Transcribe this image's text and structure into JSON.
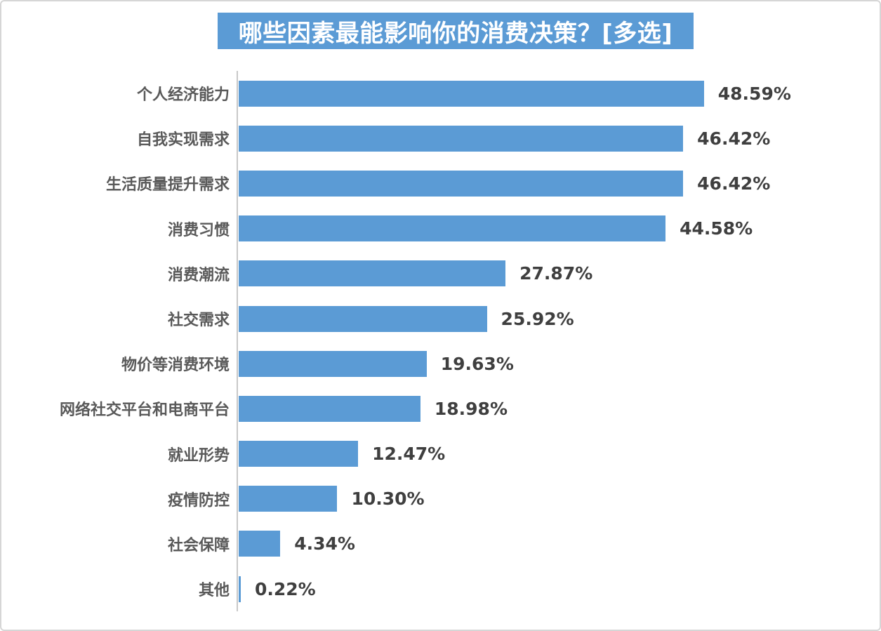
{
  "page": {
    "background": "#FFFFFF",
    "border_color": "#D6D6D6"
  },
  "chart_data": {
    "type": "bar",
    "orientation": "horizontal",
    "title": "哪些因素最能影响你的消费决策？[多选]",
    "categories": [
      "个人经济能力",
      "自我实现需求",
      "生活质量提升需求",
      "消费习惯",
      "消费潮流",
      "社交需求",
      "物价等消费环境",
      "网络社交平台和电商平台",
      "就业形势",
      "疫情防控",
      "社会保障",
      "其他"
    ],
    "values": [
      48.59,
      46.42,
      46.42,
      44.58,
      27.87,
      25.92,
      19.63,
      18.98,
      12.47,
      10.3,
      4.34,
      0.22
    ],
    "value_labels": [
      "48.59%",
      "46.42%",
      "46.42%",
      "44.58%",
      "27.87%",
      "25.92%",
      "19.63%",
      "18.98%",
      "12.47%",
      "10.30%",
      "4.34%",
      "0.22%"
    ],
    "xlabel": "",
    "ylabel": "",
    "xlim": [
      0,
      50
    ],
    "grid": false,
    "legend": false,
    "data_labels_position": "outside-end",
    "colors": {
      "bar": "#5B9BD5",
      "title_background": "#5B9BD5",
      "title_text": "#FFFFFF",
      "category_label": "#595959",
      "value_label": "#3F3F3F",
      "axis_line": "#C9C9C9"
    }
  }
}
